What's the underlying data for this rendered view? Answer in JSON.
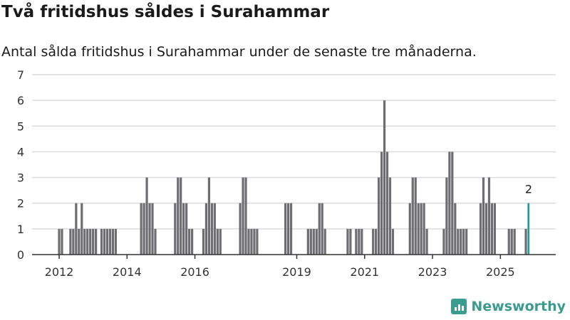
{
  "chart_data": {
    "type": "bar",
    "title": "Två fritidshus såldes i Surahammar",
    "subtitle": "Antal sålda fritidshus i Surahammar under de senaste tre månaderna.",
    "xlabel": "",
    "ylabel": "",
    "ylim": [
      0,
      7
    ],
    "yticks": [
      "0",
      "1",
      "2",
      "3",
      "4",
      "5",
      "6",
      "7"
    ],
    "grid": true,
    "start_month": "2012-01",
    "xticks": [
      {
        "label": "2012",
        "month_index": 0
      },
      {
        "label": "2014",
        "month_index": 24
      },
      {
        "label": "2016",
        "month_index": 48
      },
      {
        "label": "2019",
        "month_index": 84
      },
      {
        "label": "2021",
        "month_index": 108
      },
      {
        "label": "2023",
        "month_index": 132
      },
      {
        "label": "2025",
        "month_index": 156
      }
    ],
    "values": [
      1,
      1,
      0,
      0,
      1,
      1,
      2,
      1,
      2,
      1,
      1,
      1,
      1,
      1,
      0,
      1,
      1,
      1,
      1,
      1,
      1,
      0,
      0,
      0,
      0,
      0,
      0,
      0,
      0,
      2,
      2,
      3,
      2,
      2,
      1,
      0,
      0,
      0,
      0,
      0,
      0,
      2,
      3,
      3,
      2,
      2,
      1,
      1,
      0,
      0,
      0,
      1,
      2,
      3,
      2,
      2,
      1,
      1,
      0,
      0,
      0,
      0,
      0,
      0,
      2,
      3,
      3,
      1,
      1,
      1,
      1,
      0,
      0,
      0,
      0,
      0,
      0,
      0,
      0,
      0,
      2,
      2,
      2,
      0,
      0,
      0,
      0,
      0,
      1,
      1,
      1,
      1,
      2,
      2,
      1,
      0,
      0,
      0,
      0,
      0,
      0,
      0,
      1,
      1,
      0,
      1,
      1,
      1,
      0,
      0,
      0,
      1,
      1,
      3,
      4,
      6,
      4,
      3,
      1,
      0,
      0,
      0,
      0,
      0,
      2,
      3,
      3,
      2,
      2,
      2,
      1,
      0,
      0,
      0,
      0,
      0,
      1,
      3,
      4,
      4,
      2,
      1,
      1,
      1,
      1,
      0,
      0,
      0,
      0,
      2,
      3,
      2,
      3,
      2,
      2,
      0,
      0,
      0,
      0,
      1,
      1,
      1,
      0,
      0,
      0,
      1,
      2
    ],
    "highlight_label": "2",
    "colors": {
      "bar": "#6e6d72",
      "highlight": "#1a9e96",
      "grid": "#dcdcdc",
      "axis": "#333333"
    }
  },
  "brand": {
    "name": "Newsworthy"
  }
}
